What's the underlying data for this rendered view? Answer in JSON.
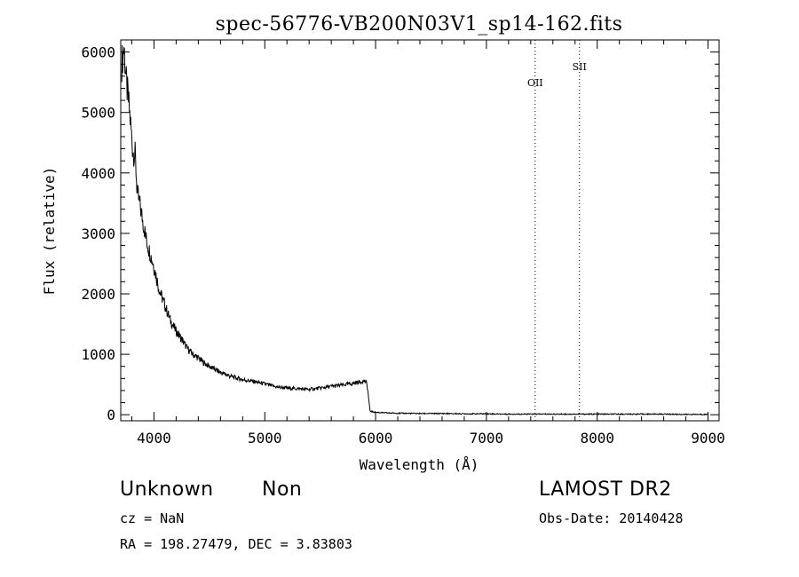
{
  "chart_data": {
    "type": "line",
    "title": "spec-56776-VB200N03V1_sp14-162.fits",
    "xlabel": "Wavelength (Å)",
    "ylabel": "Flux (relative)",
    "xlim": [
      3700,
      9100
    ],
    "ylim": [
      -100,
      6200
    ],
    "xticks": [
      4000,
      5000,
      6000,
      7000,
      8000,
      9000
    ],
    "yticks": [
      0,
      1000,
      2000,
      3000,
      4000,
      5000,
      6000
    ],
    "grid": false,
    "series": [
      {
        "color": "#000000",
        "x": [
          3710,
          3730,
          3750,
          3770,
          3790,
          3810,
          3830,
          3850,
          3870,
          3900,
          3930,
          3960,
          4000,
          4050,
          4100,
          4150,
          4200,
          4250,
          4300,
          4350,
          4400,
          4450,
          4500,
          4600,
          4700,
          4800,
          4900,
          5000,
          5100,
          5200,
          5300,
          5400,
          5500,
          5600,
          5700,
          5800,
          5850,
          5900,
          5920,
          5930,
          5950,
          6000,
          6100,
          6200,
          6400,
          6600,
          6800,
          7000,
          7200,
          7400,
          7600,
          7800,
          8000,
          8200,
          8400,
          8600,
          8800,
          9000
        ],
        "y": [
          5800,
          6100,
          5500,
          5200,
          4800,
          4350,
          4300,
          3650,
          3500,
          3200,
          2900,
          2700,
          2450,
          2050,
          1800,
          1550,
          1380,
          1250,
          1100,
          1000,
          940,
          860,
          800,
          700,
          630,
          580,
          550,
          510,
          460,
          440,
          430,
          420,
          440,
          470,
          490,
          520,
          540,
          560,
          520,
          400,
          60,
          40,
          30,
          25,
          20,
          20,
          15,
          15,
          10,
          10,
          10,
          10,
          10,
          10,
          10,
          10,
          5,
          5
        ]
      }
    ],
    "annotations": [
      {
        "text": "OII",
        "x": 7440
      },
      {
        "text": "SII",
        "x": 7840
      }
    ]
  },
  "info": {
    "class_label": "Unknown",
    "subclass_label": "Non",
    "cz": "cz = NaN",
    "coords": "RA = 198.27479, DEC =   3.83803",
    "survey": "LAMOST DR2",
    "obs_date": "Obs-Date: 20140428"
  }
}
